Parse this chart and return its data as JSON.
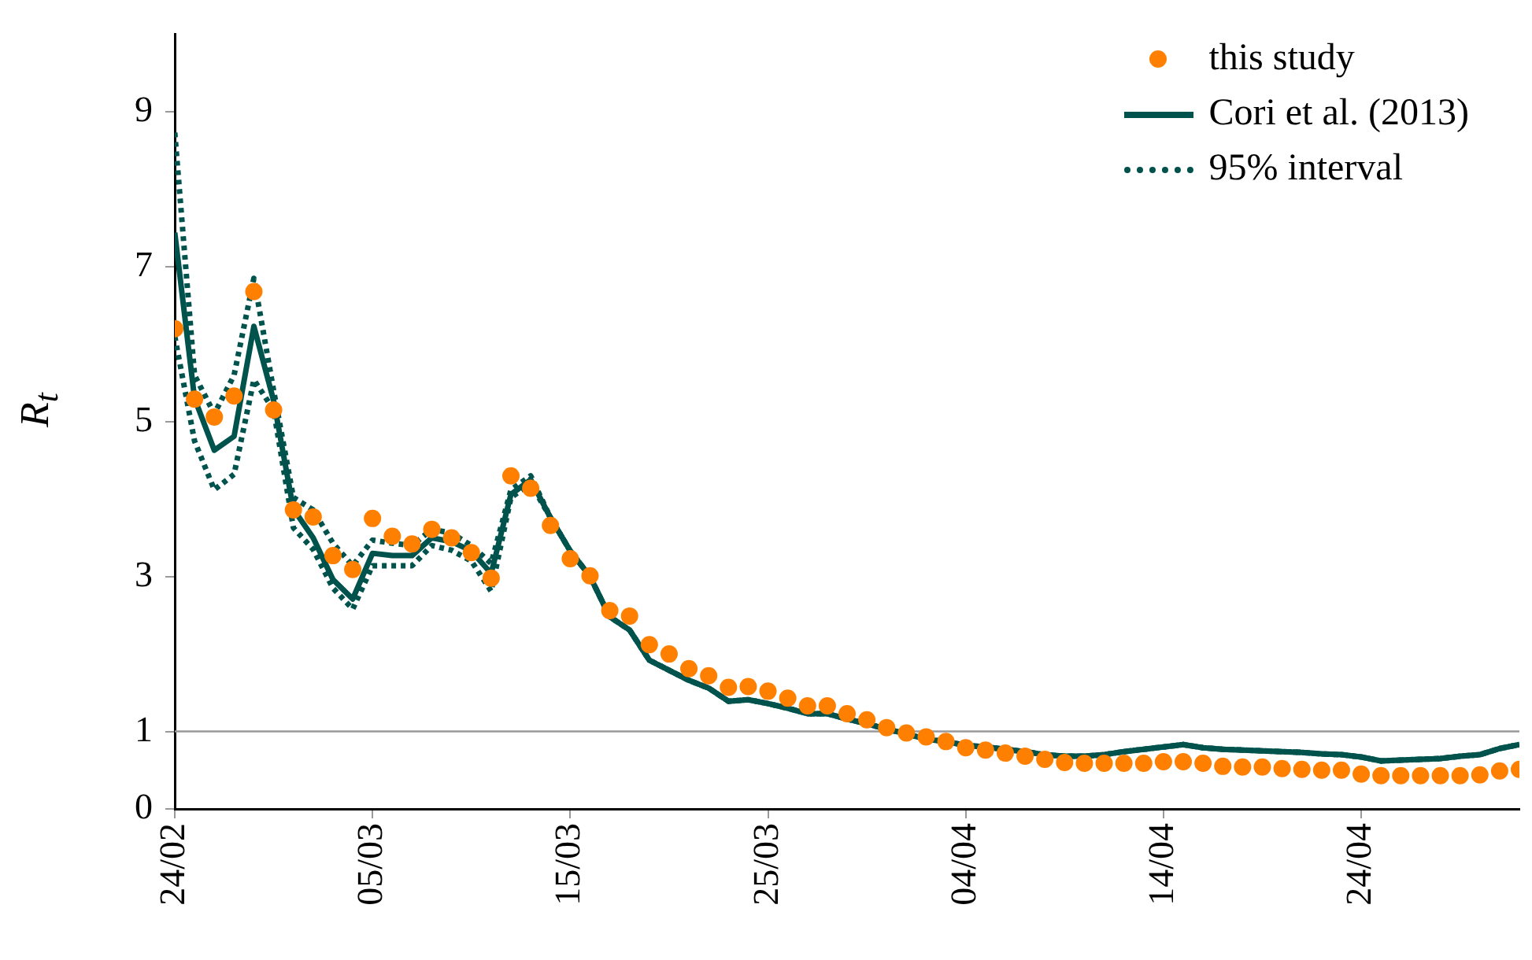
{
  "chart_data": {
    "type": "line",
    "ylabel": "R$_{t}$",
    "x": [
      "--02-24",
      "--02-25",
      "--02-26",
      "--02-27",
      "--02-28",
      "--02-29",
      "--03-01",
      "--03-02",
      "--03-03",
      "--03-04",
      "--03-05",
      "--03-06",
      "--03-07",
      "--03-08",
      "--03-09",
      "--03-10",
      "--03-11",
      "--03-12",
      "--03-13",
      "--03-14",
      "--03-15",
      "--03-16",
      "--03-17",
      "--03-18",
      "--03-19",
      "--03-20",
      "--03-21",
      "--03-22",
      "--03-23",
      "--03-24",
      "--03-25",
      "--03-26",
      "--03-27",
      "--03-28",
      "--03-29",
      "--03-30",
      "--03-31",
      "--04-01",
      "--04-02",
      "--04-03",
      "--04-04",
      "--04-05",
      "--04-06",
      "--04-07",
      "--04-08",
      "--04-09",
      "--04-10",
      "--04-11",
      "--04-12",
      "--04-13",
      "--04-14",
      "--04-15",
      "--04-16",
      "--04-17",
      "--04-18",
      "--04-19",
      "--04-20",
      "--04-21",
      "--04-22",
      "--04-23",
      "--04-24",
      "--04-25",
      "--04-26",
      "--04-27",
      "--04-28",
      "--04-29",
      "--04-30",
      "--05-01",
      "--05-02"
    ],
    "series": [
      {
        "name": "this study",
        "type": "scatter",
        "marker": "circle",
        "color": "#ff8000",
        "values": [
          6.2,
          5.29,
          5.06,
          5.33,
          6.68,
          5.15,
          3.86,
          3.77,
          3.27,
          3.09,
          3.75,
          3.52,
          3.42,
          3.61,
          3.5,
          3.31,
          2.98,
          4.3,
          4.14,
          3.66,
          3.23,
          3.01,
          2.56,
          2.49,
          2.12,
          2.0,
          1.81,
          1.72,
          1.57,
          1.58,
          1.52,
          1.43,
          1.33,
          1.33,
          1.23,
          1.15,
          1.05,
          0.98,
          0.93,
          0.87,
          0.79,
          0.76,
          0.72,
          0.68,
          0.64,
          0.6,
          0.59,
          0.59,
          0.59,
          0.59,
          0.61,
          0.61,
          0.59,
          0.55,
          0.54,
          0.54,
          0.52,
          0.51,
          0.5,
          0.5,
          0.45,
          0.43,
          0.43,
          0.43,
          0.43,
          0.43,
          0.44,
          0.49,
          0.51
        ]
      },
      {
        "name": "Cori et al. (2013)",
        "line_style": "solid",
        "color": "#00524c",
        "values": [
          7.44,
          5.3,
          4.63,
          4.81,
          6.23,
          5.27,
          3.87,
          3.5,
          2.96,
          2.71,
          3.3,
          3.27,
          3.27,
          3.5,
          3.45,
          3.33,
          3.04,
          4.06,
          4.25,
          3.76,
          3.33,
          3.0,
          2.48,
          2.31,
          1.92,
          1.79,
          1.66,
          1.56,
          1.39,
          1.41,
          1.36,
          1.3,
          1.23,
          1.23,
          1.16,
          1.1,
          1.03,
          0.97,
          0.9,
          0.87,
          0.82,
          0.8,
          0.77,
          0.74,
          0.7,
          0.68,
          0.68,
          0.7,
          0.74,
          0.77,
          0.8,
          0.83,
          0.79,
          0.77,
          0.76,
          0.75,
          0.74,
          0.73,
          0.71,
          0.7,
          0.67,
          0.62,
          0.63,
          0.64,
          0.65,
          0.68,
          0.7,
          0.78,
          0.83
        ]
      },
      {
        "name": "95% interval",
        "line_style": "dotted",
        "color": "#00524c",
        "values": [
          8.73,
          5.6,
          5.1,
          5.6,
          6.85,
          5.4,
          4.02,
          3.86,
          3.43,
          3.14,
          3.47,
          3.43,
          3.4,
          3.61,
          3.56,
          3.4,
          3.17,
          4.12,
          4.3,
          3.76,
          3.33,
          3.0,
          2.48,
          2.31,
          1.92,
          1.79,
          1.66,
          1.56,
          1.39,
          1.41,
          1.36,
          1.3,
          1.23,
          1.23,
          1.16,
          1.1,
          1.03,
          0.97,
          0.9,
          0.87,
          0.82,
          0.8,
          0.77,
          0.74,
          0.7,
          0.68,
          0.68,
          0.7,
          0.74,
          0.77,
          0.8,
          0.83,
          0.79,
          0.77,
          0.76,
          0.75,
          0.74,
          0.73,
          0.71,
          0.7,
          0.67,
          0.62,
          0.63,
          0.64,
          0.65,
          0.68,
          0.7,
          0.78,
          0.83
        ]
      },
      {
        "line_style": "dotted",
        "color": "#00524c",
        "values": [
          6.1,
          4.75,
          4.12,
          4.32,
          5.54,
          5.15,
          3.63,
          3.35,
          2.85,
          2.58,
          3.14,
          3.14,
          3.14,
          3.4,
          3.34,
          3.2,
          2.81,
          4.02,
          4.2,
          3.76,
          3.33,
          3.0,
          2.48,
          2.31,
          1.92,
          1.79,
          1.66,
          1.56,
          1.39,
          1.41,
          1.36,
          1.3,
          1.23,
          1.23,
          1.16,
          1.1,
          1.03,
          0.97,
          0.9,
          0.87,
          0.82,
          0.8,
          0.77,
          0.74,
          0.7,
          0.68,
          0.68,
          0.7,
          0.74,
          0.77,
          0.8,
          0.83,
          0.79,
          0.77,
          0.76,
          0.75,
          0.74,
          0.73,
          0.71,
          0.7,
          0.67,
          0.62,
          0.63,
          0.64,
          0.65,
          0.68,
          0.7,
          0.78,
          0.83
        ]
      }
    ],
    "xlim": [
      "--02-24",
      "--05-02"
    ],
    "xticks": [
      {
        "value": "--02-24",
        "label": "24/02"
      },
      {
        "value": "--03-05",
        "label": "05/03"
      },
      {
        "value": "--03-15",
        "label": "15/03"
      },
      {
        "value": "--03-25",
        "label": "25/03"
      },
      {
        "value": "--04-04",
        "label": "04/04"
      },
      {
        "value": "--04-14",
        "label": "14/04"
      },
      {
        "value": "--04-24",
        "label": "24/04"
      }
    ],
    "ylim": [
      0,
      10
    ],
    "yticks": [
      0,
      1,
      3,
      5,
      7,
      9
    ],
    "ref_lines": [
      {
        "axis": "y",
        "value": 1,
        "color": "#999999"
      }
    ],
    "grid": false,
    "legend": "top right"
  }
}
